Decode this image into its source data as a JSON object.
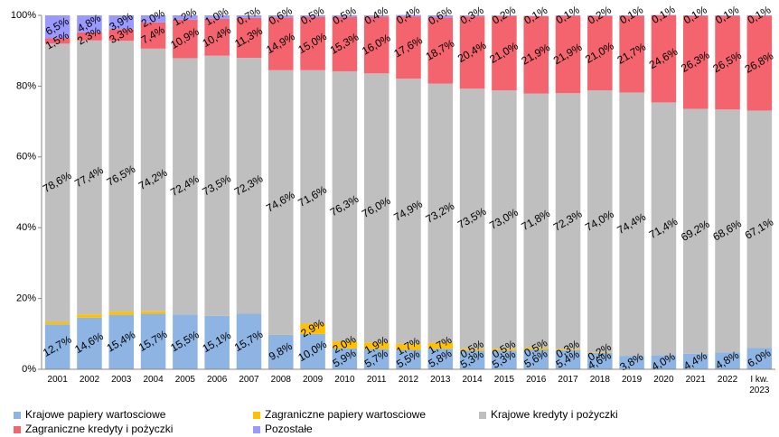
{
  "chart_data": {
    "type": "bar",
    "stacked": true,
    "categories": [
      "2001",
      "2002",
      "2003",
      "2004",
      "2005",
      "2006",
      "2007",
      "2008",
      "2009",
      "2010",
      "2011",
      "2012",
      "2013",
      "2014",
      "2015",
      "2016",
      "2017",
      "2018",
      "2019",
      "2020",
      "2021",
      "2022",
      "I kw. 2023"
    ],
    "ylim": [
      0,
      100
    ],
    "yticks": [
      {
        "value": 0,
        "label": "0%"
      },
      {
        "value": 20,
        "label": "20%"
      },
      {
        "value": 40,
        "label": "40%"
      },
      {
        "value": 60,
        "label": "60%"
      },
      {
        "value": 80,
        "label": "80%"
      },
      {
        "value": 100,
        "label": "100%"
      }
    ],
    "series": [
      {
        "name": "Krajowe papiery wartosciowe",
        "color": "#8eb4e3",
        "values": [
          12.7,
          14.6,
          15.4,
          15.7,
          15.5,
          15.1,
          15.7,
          9.8,
          10.0,
          5.9,
          5.7,
          5.5,
          5.8,
          5.3,
          5.3,
          5.6,
          5.4,
          4.6,
          3.8,
          4.0,
          4.4,
          4.8,
          6.0
        ],
        "value_labels": [
          "12,7%",
          "14,6%",
          "15,4%",
          "15,7%",
          "15,5%",
          "15,1%",
          "15,7%",
          "9,8%",
          "10,0%",
          "5,9%",
          "5,7%",
          "5,5%",
          "5,8%",
          "5,3%",
          "5,3%",
          "5,6%",
          "5,4%",
          "4,6%",
          "3,8%",
          "4,0%",
          "4,4%",
          "4,8%",
          "6,0%"
        ]
      },
      {
        "name": "Zagraniczne papiery wartosciowe",
        "color": "#ffc000",
        "values": [
          0.7,
          0.9,
          0.9,
          0.7,
          0,
          0,
          0,
          0.1,
          2.9,
          2.0,
          1.9,
          1.7,
          1.7,
          0.5,
          0.5,
          0.5,
          0.3,
          0.2,
          0,
          0,
          0,
          0,
          0
        ],
        "value_labels": [
          null,
          null,
          null,
          null,
          null,
          null,
          null,
          null,
          "2,9%",
          "2,0%",
          "1,9%",
          "1,7%",
          "1,7%",
          "0,5%",
          "0,5%",
          "0,5%",
          "0,3%",
          "0,2%",
          null,
          null,
          null,
          null,
          null
        ]
      },
      {
        "name": "Krajowe kredyty i pożyczki",
        "color": "#bfbfbf",
        "values": [
          78.6,
          77.4,
          76.5,
          74.2,
          72.4,
          73.5,
          72.3,
          74.6,
          71.6,
          76.3,
          76.0,
          74.9,
          73.2,
          73.5,
          73.0,
          71.8,
          72.3,
          74.0,
          74.4,
          71.4,
          69.2,
          68.6,
          67.1
        ],
        "value_labels": [
          "78,6%",
          "77,4%",
          "76,5%",
          "74,2%",
          "72,4%",
          "73,5%",
          "72,3%",
          "74,6%",
          "71,6%",
          "76,3%",
          "76,0%",
          "74,9%",
          "73,2%",
          "73,5%",
          "73,0%",
          "71,8%",
          "72,3%",
          "74,0%",
          "74,4%",
          "71,4%",
          "69,2%",
          "68,6%",
          "67,1%"
        ]
      },
      {
        "name": "Zagraniczne kredyty i pożyczki",
        "color": "#f4646e",
        "values": [
          1.5,
          2.3,
          3.3,
          7.4,
          10.9,
          10.4,
          11.3,
          14.9,
          15.0,
          15.3,
          16.0,
          17.6,
          18.7,
          20.4,
          21.0,
          21.9,
          21.9,
          21.0,
          21.7,
          24.6,
          26.3,
          26.5,
          26.8
        ],
        "value_labels": [
          "1,5%",
          "2,3%",
          "3,3%",
          "7,4%",
          "10,9%",
          "10,4%",
          "11,3%",
          "14,9%",
          "15,0%",
          "15,3%",
          "16,0%",
          "17,6%",
          "18,7%",
          "20,4%",
          "21,0%",
          "21,9%",
          "21,9%",
          "21,0%",
          "21,7%",
          "24,6%",
          "26,3%",
          "26,5%",
          "26,8%"
        ]
      },
      {
        "name": "Pozostałe",
        "color": "#9999ff",
        "values": [
          6.5,
          4.8,
          3.9,
          2.0,
          1.2,
          1.0,
          0.7,
          0.6,
          0.5,
          0.5,
          0.4,
          0.4,
          0.6,
          0.3,
          0.2,
          0.1,
          0.1,
          0.2,
          0.1,
          0.1,
          0.1,
          0.1,
          0.1
        ],
        "value_labels": [
          "6,5%",
          "4,8%",
          "3,9%",
          "2,0%",
          "1,2%",
          "1,0%",
          "0,7%",
          "0,6%",
          "0,5%",
          "0,5%",
          "0,4%",
          "0,4%",
          "0,6%",
          "0,3%",
          "0,2%",
          "0,1%",
          "0,1%",
          "0,2%",
          "0,1%",
          "0,1%",
          "0,1%",
          "0,1%",
          "0,1%"
        ]
      }
    ]
  }
}
